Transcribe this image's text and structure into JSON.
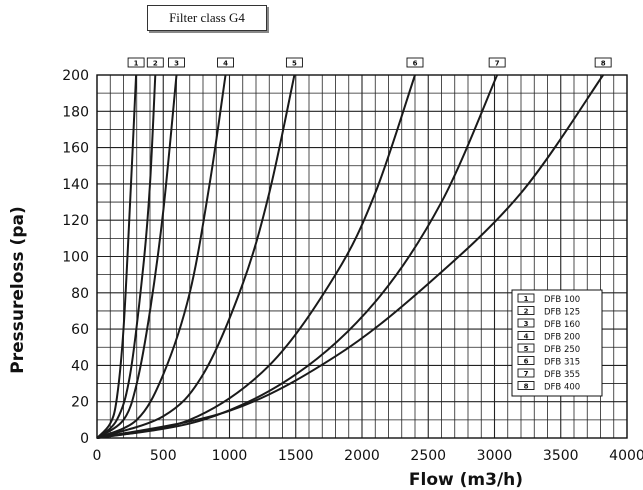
{
  "chart_data": {
    "type": "line",
    "title": "Filter class G4",
    "xlabel": "Flow (m3/h)",
    "ylabel": "Pressureloss (pa)",
    "xlim": [
      0,
      4000
    ],
    "ylim": [
      0,
      200
    ],
    "x_ticks": [
      "0",
      "500",
      "1000",
      "1500",
      "2000",
      "2500",
      "3000",
      "3500",
      "4000"
    ],
    "y_ticks": [
      "0",
      "20",
      "40",
      "60",
      "80",
      "100",
      "120",
      "140",
      "160",
      "180",
      "200"
    ],
    "grid": true,
    "legend_position": "bottom-right",
    "series": [
      {
        "tag": "1",
        "name": "DFB 100",
        "points": [
          [
            0,
            0
          ],
          [
            100,
            8
          ],
          [
            150,
            22
          ],
          [
            200,
            60
          ],
          [
            250,
            130
          ],
          [
            295,
            200
          ]
        ]
      },
      {
        "tag": "2",
        "name": "DFB 125",
        "points": [
          [
            0,
            0
          ],
          [
            150,
            10
          ],
          [
            250,
            35
          ],
          [
            350,
            95
          ],
          [
            400,
            140
          ],
          [
            440,
            200
          ]
        ]
      },
      {
        "tag": "3",
        "name": "DFB 160",
        "points": [
          [
            0,
            0
          ],
          [
            200,
            10
          ],
          [
            300,
            30
          ],
          [
            400,
            70
          ],
          [
            500,
            125
          ],
          [
            600,
            200
          ]
        ]
      },
      {
        "tag": "4",
        "name": "DFB 200",
        "points": [
          [
            0,
            0
          ],
          [
            300,
            10
          ],
          [
            500,
            35
          ],
          [
            700,
            80
          ],
          [
            850,
            140
          ],
          [
            970,
            200
          ]
        ]
      },
      {
        "tag": "5",
        "name": "DFB 250",
        "points": [
          [
            0,
            0
          ],
          [
            500,
            12
          ],
          [
            800,
            35
          ],
          [
            1100,
            85
          ],
          [
            1300,
            135
          ],
          [
            1490,
            200
          ]
        ]
      },
      {
        "tag": "6",
        "name": "DFB 315",
        "points": [
          [
            0,
            0
          ],
          [
            700,
            10
          ],
          [
            1300,
            40
          ],
          [
            1800,
            90
          ],
          [
            2100,
            135
          ],
          [
            2400,
            200
          ]
        ]
      },
      {
        "tag": "7",
        "name": "DFB 355",
        "points": [
          [
            0,
            0
          ],
          [
            800,
            10
          ],
          [
            1500,
            35
          ],
          [
            2100,
            75
          ],
          [
            2600,
            130
          ],
          [
            3020,
            200
          ]
        ]
      },
      {
        "tag": "8",
        "name": "DFB 400",
        "points": [
          [
            0,
            0
          ],
          [
            1000,
            15
          ],
          [
            1800,
            45
          ],
          [
            2500,
            85
          ],
          [
            3200,
            135
          ],
          [
            3820,
            200
          ]
        ]
      }
    ]
  }
}
